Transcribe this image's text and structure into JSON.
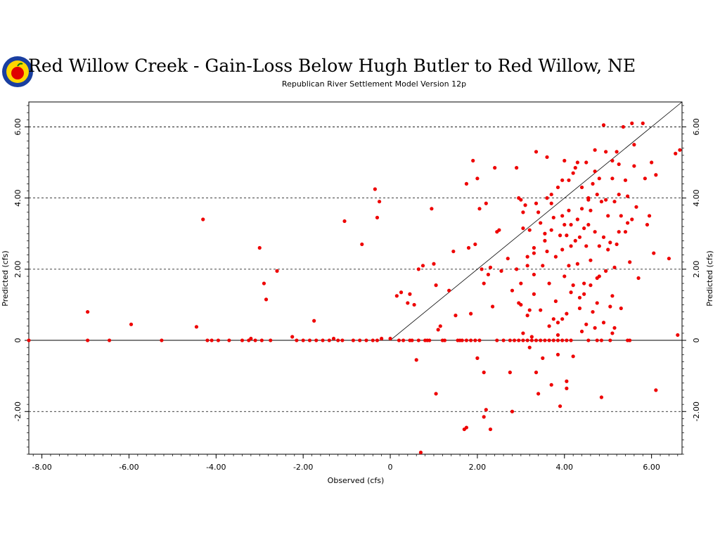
{
  "colors": {
    "points": "#ee0000",
    "axes": "#000000",
    "background": "#ffffff",
    "logo_ring": "#1a3fa0",
    "logo_fill": "#ffd700",
    "logo_apple": "#e00000"
  },
  "chart_data": {
    "type": "scatter",
    "title": "Red Willow Creek - Gain-Loss Below Hugh Butler to Red Willow, NE",
    "subtitle": "Republican River Settlement Model Version 12p",
    "xlabel": "Observed (cfs)",
    "ylabel": "Predicted (cfs)",
    "xlim": [
      -8.3,
      6.7
    ],
    "ylim": [
      -3.2,
      6.7
    ],
    "x_ticks": [
      -8,
      -6,
      -4,
      -2,
      0,
      2,
      4,
      6
    ],
    "x_tick_labels": [
      "-8.00",
      "-6.00",
      "-4.00",
      "-2.00",
      "0",
      "2.00",
      "4.00",
      "6.00"
    ],
    "y_ticks": [
      -2,
      0,
      2,
      4,
      6
    ],
    "y_tick_labels": [
      "-2.00",
      "0",
      "2.00",
      "4.00",
      "6.00"
    ],
    "grid": "dashed horizontal lines at major y ticks",
    "reference_line": "1:1 line from origin",
    "series": [
      {
        "color": "#ee0000",
        "points": [
          [
            -8.3,
            0
          ],
          [
            -6.95,
            0.8
          ],
          [
            -6.95,
            0
          ],
          [
            -6.45,
            0
          ],
          [
            -5.95,
            0.45
          ],
          [
            -5.25,
            0
          ],
          [
            -4.45,
            0.38
          ],
          [
            -4.3,
            3.4
          ],
          [
            -4.2,
            0
          ],
          [
            -4.1,
            0
          ],
          [
            -3.95,
            0
          ],
          [
            -3.7,
            0
          ],
          [
            -3.4,
            0
          ],
          [
            -3.25,
            0
          ],
          [
            -3.2,
            0.05
          ],
          [
            -3.1,
            0
          ],
          [
            -3.0,
            2.6
          ],
          [
            -2.95,
            0
          ],
          [
            -2.9,
            1.6
          ],
          [
            -2.85,
            1.15
          ],
          [
            -2.75,
            0
          ],
          [
            -2.6,
            1.95
          ],
          [
            -2.25,
            0.1
          ],
          [
            -2.15,
            0
          ],
          [
            -2.0,
            0
          ],
          [
            -1.85,
            0
          ],
          [
            -1.75,
            0.55
          ],
          [
            -1.7,
            0
          ],
          [
            -1.55,
            0
          ],
          [
            -1.4,
            0
          ],
          [
            -1.3,
            0.05
          ],
          [
            -1.2,
            0
          ],
          [
            -1.1,
            0
          ],
          [
            -1.05,
            3.35
          ],
          [
            -0.85,
            0
          ],
          [
            -0.7,
            0
          ],
          [
            -0.65,
            2.7
          ],
          [
            -0.55,
            0
          ],
          [
            -0.4,
            0
          ],
          [
            -0.35,
            4.25
          ],
          [
            -0.3,
            3.45
          ],
          [
            -0.25,
            3.9
          ],
          [
            -0.2,
            0.05
          ],
          [
            -0.3,
            0
          ],
          [
            0,
            0.05
          ],
          [
            0.15,
            1.25
          ],
          [
            0.2,
            0
          ],
          [
            0.25,
            1.35
          ],
          [
            0.3,
            0
          ],
          [
            0.4,
            1.05
          ],
          [
            0.45,
            1.3
          ],
          [
            0.5,
            0
          ],
          [
            0.55,
            1.0
          ],
          [
            0.6,
            -0.55
          ],
          [
            0.65,
            2.0
          ],
          [
            0.7,
            -3.15
          ],
          [
            0.75,
            2.1
          ],
          [
            0.8,
            0
          ],
          [
            0.9,
            0
          ],
          [
            0.95,
            3.7
          ],
          [
            1.0,
            2.15
          ],
          [
            1.05,
            1.55
          ],
          [
            1.1,
            0.3
          ],
          [
            1.05,
            -1.5
          ],
          [
            1.15,
            0.4
          ],
          [
            1.2,
            0
          ],
          [
            1.35,
            1.4
          ],
          [
            1.45,
            2.5
          ],
          [
            1.5,
            0.7
          ],
          [
            1.6,
            0
          ],
          [
            1.65,
            0
          ],
          [
            1.7,
            -2.5
          ],
          [
            1.75,
            4.4
          ],
          [
            1.75,
            -2.45
          ],
          [
            1.8,
            2.6
          ],
          [
            1.85,
            0.75
          ],
          [
            1.9,
            5.05
          ],
          [
            1.95,
            2.7
          ],
          [
            2.0,
            -0.5
          ],
          [
            2.0,
            4.55
          ],
          [
            2.05,
            3.7
          ],
          [
            2.1,
            2.0
          ],
          [
            2.15,
            -2.15
          ],
          [
            2.15,
            -0.9
          ],
          [
            2.15,
            1.6
          ],
          [
            2.2,
            -1.95
          ],
          [
            2.2,
            3.85
          ],
          [
            2.25,
            1.85
          ],
          [
            2.3,
            2.05
          ],
          [
            2.3,
            -2.5
          ],
          [
            2.35,
            0.95
          ],
          [
            2.4,
            4.85
          ],
          [
            2.45,
            3.05
          ],
          [
            2.5,
            3.1
          ],
          [
            2.55,
            1.95
          ],
          [
            2.6,
            0
          ],
          [
            2.7,
            2.3
          ],
          [
            2.75,
            -0.9
          ],
          [
            2.8,
            1.4
          ],
          [
            2.8,
            -2.0
          ],
          [
            2.9,
            2.0
          ],
          [
            2.9,
            4.85
          ],
          [
            2.95,
            4.0
          ],
          [
            3.0,
            1.6
          ],
          [
            3.0,
            1.0
          ],
          [
            3.05,
            0.2
          ],
          [
            3.05,
            3.15
          ],
          [
            3.1,
            3.8
          ],
          [
            3.15,
            2.35
          ],
          [
            3.15,
            0.7
          ],
          [
            3.2,
            0.85
          ],
          [
            3.2,
            -0.2
          ],
          [
            3.25,
            0.1
          ],
          [
            3.3,
            1.85
          ],
          [
            3.3,
            1.3
          ],
          [
            3.35,
            5.3
          ],
          [
            3.35,
            -0.9
          ],
          [
            3.4,
            3.6
          ],
          [
            3.4,
            -1.5
          ],
          [
            3.45,
            0
          ],
          [
            3.5,
            2.1
          ],
          [
            3.5,
            -0.5
          ],
          [
            3.55,
            3.0
          ],
          [
            3.6,
            5.15
          ],
          [
            3.6,
            2.5
          ],
          [
            3.65,
            1.6
          ],
          [
            3.7,
            3.1
          ],
          [
            3.7,
            -1.25
          ],
          [
            3.75,
            0.6
          ],
          [
            3.8,
            2.35
          ],
          [
            3.8,
            1.1
          ],
          [
            3.85,
            0.15
          ],
          [
            3.85,
            -0.4
          ],
          [
            3.9,
            -1.85
          ],
          [
            3.95,
            3.5
          ],
          [
            3.95,
            2.55
          ],
          [
            4.0,
            1.8
          ],
          [
            4.0,
            5.05
          ],
          [
            4.05,
            -1.35
          ],
          [
            4.05,
            -1.15
          ],
          [
            4.1,
            4.5
          ],
          [
            4.1,
            3.65
          ],
          [
            4.15,
            2.65
          ],
          [
            4.15,
            1.35
          ],
          [
            4.2,
            -0.45
          ],
          [
            4.25,
            4.85
          ],
          [
            4.3,
            2.15
          ],
          [
            4.35,
            1.2
          ],
          [
            4.4,
            0.25
          ],
          [
            4.45,
            3.15
          ],
          [
            4.5,
            5.0
          ],
          [
            4.55,
            4.0
          ],
          [
            4.6,
            2.25
          ],
          [
            4.6,
            1.55
          ],
          [
            4.65,
            0.8
          ],
          [
            4.7,
            5.35
          ],
          [
            4.75,
            4.1
          ],
          [
            4.8,
            1.8
          ],
          [
            4.85,
            -1.6
          ],
          [
            4.9,
            6.05
          ],
          [
            4.95,
            3.95
          ],
          [
            5.0,
            2.55
          ],
          [
            5.05,
            0.95
          ],
          [
            5.1,
            4.55
          ],
          [
            5.15,
            2.05
          ],
          [
            5.15,
            0.35
          ],
          [
            5.2,
            5.3
          ],
          [
            5.25,
            3.05
          ],
          [
            5.3,
            0.9
          ],
          [
            5.35,
            6.0
          ],
          [
            5.4,
            4.5
          ],
          [
            5.45,
            3.3
          ],
          [
            5.5,
            0
          ],
          [
            5.55,
            6.1
          ],
          [
            5.6,
            5.5
          ],
          [
            5.65,
            3.75
          ],
          [
            5.7,
            1.75
          ],
          [
            5.8,
            6.1
          ],
          [
            5.85,
            4.55
          ],
          [
            5.9,
            3.25
          ],
          [
            5.95,
            3.5
          ],
          [
            6.0,
            5.0
          ],
          [
            6.05,
            2.45
          ],
          [
            6.1,
            4.65
          ],
          [
            6.1,
            -1.4
          ],
          [
            6.4,
            2.3
          ],
          [
            6.55,
            5.25
          ],
          [
            6.6,
            0.15
          ],
          [
            6.65,
            5.35
          ],
          [
            0.45,
            0
          ],
          [
            0.65,
            0
          ],
          [
            0.85,
            0
          ],
          [
            1.25,
            0
          ],
          [
            1.55,
            0
          ],
          [
            1.75,
            0
          ],
          [
            1.85,
            0
          ],
          [
            1.95,
            0
          ],
          [
            2.05,
            0
          ],
          [
            2.45,
            0
          ],
          [
            2.75,
            0
          ],
          [
            2.85,
            0
          ],
          [
            2.95,
            0
          ],
          [
            3.05,
            0
          ],
          [
            3.15,
            0
          ],
          [
            3.25,
            0
          ],
          [
            3.35,
            0
          ],
          [
            3.55,
            0
          ],
          [
            3.65,
            0
          ],
          [
            3.75,
            0
          ],
          [
            3.85,
            0
          ],
          [
            3.95,
            0
          ],
          [
            4.05,
            0
          ],
          [
            4.15,
            0
          ],
          [
            4.55,
            0
          ],
          [
            4.75,
            0
          ],
          [
            4.85,
            0
          ],
          [
            5.05,
            0
          ],
          [
            5.45,
            0
          ],
          [
            3.0,
            3.95
          ],
          [
            3.05,
            3.6
          ],
          [
            3.2,
            3.1
          ],
          [
            3.3,
            2.6
          ],
          [
            3.35,
            3.85
          ],
          [
            3.45,
            3.3
          ],
          [
            3.6,
            4.0
          ],
          [
            3.7,
            3.85
          ],
          [
            3.75,
            3.45
          ],
          [
            3.85,
            4.3
          ],
          [
            3.9,
            2.95
          ],
          [
            4.0,
            3.25
          ],
          [
            4.05,
            2.95
          ],
          [
            4.1,
            2.1
          ],
          [
            4.15,
            3.25
          ],
          [
            4.2,
            1.55
          ],
          [
            4.25,
            2.8
          ],
          [
            4.3,
            3.4
          ],
          [
            4.35,
            2.9
          ],
          [
            4.4,
            3.7
          ],
          [
            4.45,
            1.6
          ],
          [
            4.5,
            2.65
          ],
          [
            4.55,
            3.25
          ],
          [
            4.6,
            3.65
          ],
          [
            4.65,
            4.4
          ],
          [
            4.7,
            3.05
          ],
          [
            4.75,
            1.75
          ],
          [
            4.8,
            2.65
          ],
          [
            4.85,
            3.9
          ],
          [
            4.9,
            2.9
          ],
          [
            4.95,
            1.95
          ],
          [
            5.0,
            3.5
          ],
          [
            5.05,
            2.75
          ],
          [
            5.1,
            1.25
          ],
          [
            5.15,
            3.9
          ],
          [
            5.2,
            2.7
          ],
          [
            5.25,
            4.1
          ],
          [
            5.3,
            3.5
          ],
          [
            5.4,
            3.05
          ],
          [
            5.45,
            4.05
          ],
          [
            5.5,
            2.2
          ],
          [
            5.55,
            3.4
          ],
          [
            5.6,
            4.9
          ],
          [
            5.25,
            4.95
          ],
          [
            5.1,
            5.05
          ],
          [
            4.95,
            5.3
          ],
          [
            4.8,
            4.55
          ],
          [
            4.7,
            4.75
          ],
          [
            4.55,
            3.95
          ],
          [
            4.4,
            4.3
          ],
          [
            4.3,
            5.0
          ],
          [
            4.2,
            4.7
          ],
          [
            3.95,
            4.5
          ],
          [
            3.7,
            4.1
          ],
          [
            3.55,
            2.8
          ],
          [
            3.3,
            2.45
          ],
          [
            3.15,
            2.1
          ],
          [
            2.95,
            1.05
          ],
          [
            3.85,
            0.5
          ],
          [
            4.05,
            0.75
          ],
          [
            4.35,
            0.9
          ],
          [
            4.5,
            0.45
          ],
          [
            4.7,
            0.35
          ],
          [
            4.9,
            0.5
          ],
          [
            5.1,
            0.2
          ],
          [
            3.45,
            0.85
          ],
          [
            3.65,
            0.4
          ],
          [
            3.95,
            0.6
          ],
          [
            4.45,
            1.3
          ],
          [
            4.75,
            1.05
          ]
        ]
      }
    ]
  }
}
